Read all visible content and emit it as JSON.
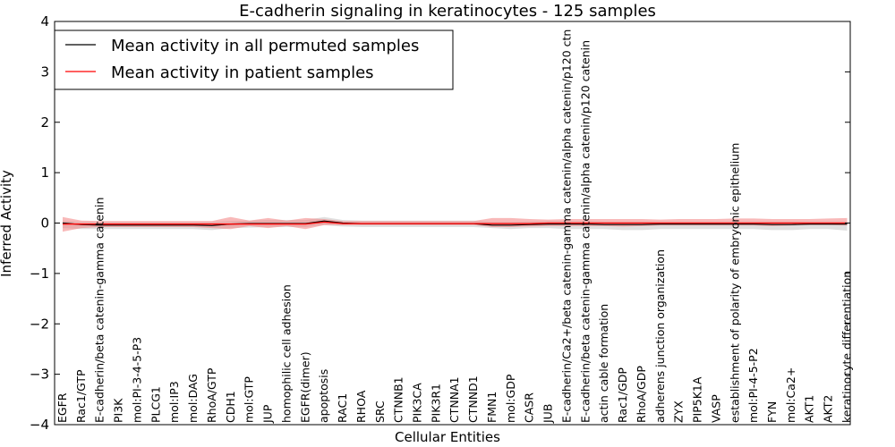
{
  "chart_data": {
    "type": "line",
    "title": "E-cadherin signaling in keratinocytes - 125 samples",
    "xlabel": "Cellular Entities",
    "ylabel": "Inferred Activity",
    "ylim": [
      -4,
      4
    ],
    "yticks": [
      -4,
      -3,
      -2,
      -1,
      0,
      1,
      2,
      3,
      4
    ],
    "yticklabels": [
      "−4",
      "−3",
      "−2",
      "−1",
      "0",
      "1",
      "2",
      "3",
      "4"
    ],
    "grid": false,
    "legend": "top-left",
    "categories": [
      "EGFR",
      "Rac1/GTP",
      "E-cadherin/beta catenin-gamma catenin",
      "PI3K",
      "mol:PI-3-4-5-P3",
      "PLCG1",
      "mol:IP3",
      "mol:DAG",
      "RhoA/GTP",
      "CDH1",
      "mol:GTP",
      "JUP",
      "homophilic cell adhesion",
      "EGFR(dimer)",
      "apoptosis",
      "RAC1",
      "RHOA",
      "SRC",
      "CTNNB1",
      "PIK3CA",
      "PIK3R1",
      "CTNNA1",
      "CTNND1",
      "FMN1",
      "mol:GDP",
      "CASR",
      "JUB",
      "E-cadherin/Ca2+/beta catenin-gamma catenin/alpha catenin/p120 ctn",
      "E-cadherin/beta catenin-gamma catenin/alpha catenin/p120 catenin",
      "actin cable formation",
      "Rac1/GDP",
      "RhoA/GDP",
      "adherens junction organization",
      "ZYX",
      "PIP5K1A",
      "VASP",
      "establishment of polarity of embryonic epithelium",
      "mol:PI-4-5-P2",
      "FYN",
      "mol:Ca2+",
      "AKT1",
      "AKT2",
      "keratinocyte differentiation"
    ],
    "series": [
      {
        "name": "Mean activity in all permuted samples",
        "color": "#000000",
        "band_color": "#bbbbbb",
        "values": [
          0.0,
          -0.03,
          -0.04,
          -0.04,
          -0.04,
          -0.04,
          -0.04,
          -0.04,
          -0.05,
          -0.02,
          -0.01,
          -0.01,
          -0.01,
          -0.01,
          0.04,
          0.0,
          -0.01,
          -0.01,
          -0.01,
          -0.01,
          -0.01,
          -0.01,
          -0.01,
          -0.04,
          -0.04,
          -0.03,
          -0.02,
          -0.02,
          -0.02,
          -0.03,
          -0.03,
          -0.03,
          -0.02,
          -0.02,
          -0.02,
          -0.02,
          -0.02,
          -0.02,
          -0.03,
          -0.03,
          -0.02,
          -0.02,
          -0.02
        ],
        "band_lower": [
          -0.1,
          -0.12,
          -0.12,
          -0.12,
          -0.12,
          -0.12,
          -0.12,
          -0.12,
          -0.14,
          -0.1,
          -0.09,
          -0.08,
          -0.08,
          -0.08,
          -0.04,
          -0.07,
          -0.08,
          -0.08,
          -0.08,
          -0.08,
          -0.08,
          -0.08,
          -0.08,
          -0.1,
          -0.12,
          -0.1,
          -0.1,
          -0.12,
          -0.12,
          -0.12,
          -0.14,
          -0.14,
          -0.12,
          -0.12,
          -0.12,
          -0.12,
          -0.12,
          -0.12,
          -0.14,
          -0.14,
          -0.12,
          -0.12,
          -0.15
        ],
        "band_upper": [
          0.05,
          0.02,
          0.02,
          0.02,
          0.02,
          0.02,
          0.02,
          0.02,
          0.02,
          0.04,
          0.05,
          0.06,
          0.06,
          0.06,
          0.12,
          0.06,
          0.05,
          0.05,
          0.05,
          0.05,
          0.05,
          0.05,
          0.05,
          0.02,
          0.02,
          0.03,
          0.04,
          0.04,
          0.04,
          0.03,
          0.03,
          0.03,
          0.03,
          0.03,
          0.03,
          0.03,
          0.03,
          0.03,
          0.03,
          0.03,
          0.03,
          0.03,
          0.03
        ]
      },
      {
        "name": "Mean activity in patient samples",
        "color": "#ff0000",
        "band_color": "#f28080",
        "values": [
          -0.02,
          -0.02,
          -0.02,
          -0.02,
          -0.02,
          -0.02,
          -0.02,
          -0.02,
          -0.02,
          -0.02,
          -0.02,
          -0.02,
          -0.02,
          -0.02,
          0.02,
          -0.01,
          -0.01,
          -0.01,
          -0.01,
          -0.01,
          -0.01,
          -0.01,
          -0.01,
          -0.01,
          -0.01,
          -0.01,
          0.0,
          0.0,
          0.0,
          0.0,
          0.0,
          0.0,
          0.0,
          0.0,
          0.0,
          0.0,
          0.0,
          0.0,
          0.0,
          0.0,
          0.0,
          0.0,
          0.0
        ],
        "band_lower": [
          -0.17,
          -0.1,
          -0.08,
          -0.08,
          -0.08,
          -0.08,
          -0.08,
          -0.08,
          -0.1,
          -0.12,
          -0.06,
          -0.1,
          -0.06,
          -0.12,
          -0.04,
          -0.04,
          -0.04,
          -0.04,
          -0.04,
          -0.04,
          -0.04,
          -0.04,
          -0.04,
          -0.08,
          -0.08,
          -0.07,
          -0.06,
          -0.06,
          -0.06,
          -0.06,
          -0.07,
          -0.06,
          -0.05,
          -0.05,
          -0.05,
          -0.05,
          -0.05,
          -0.05,
          -0.06,
          -0.05,
          -0.04,
          -0.04,
          -0.05
        ],
        "band_upper": [
          0.12,
          0.05,
          0.04,
          0.04,
          0.04,
          0.04,
          0.04,
          0.04,
          0.04,
          0.12,
          0.05,
          0.1,
          0.05,
          0.1,
          0.08,
          0.04,
          0.04,
          0.04,
          0.04,
          0.04,
          0.04,
          0.04,
          0.04,
          0.1,
          0.1,
          0.08,
          0.07,
          0.08,
          0.08,
          0.08,
          0.08,
          0.08,
          0.07,
          0.08,
          0.08,
          0.08,
          0.09,
          0.09,
          0.08,
          0.08,
          0.08,
          0.09,
          0.1
        ]
      }
    ]
  }
}
